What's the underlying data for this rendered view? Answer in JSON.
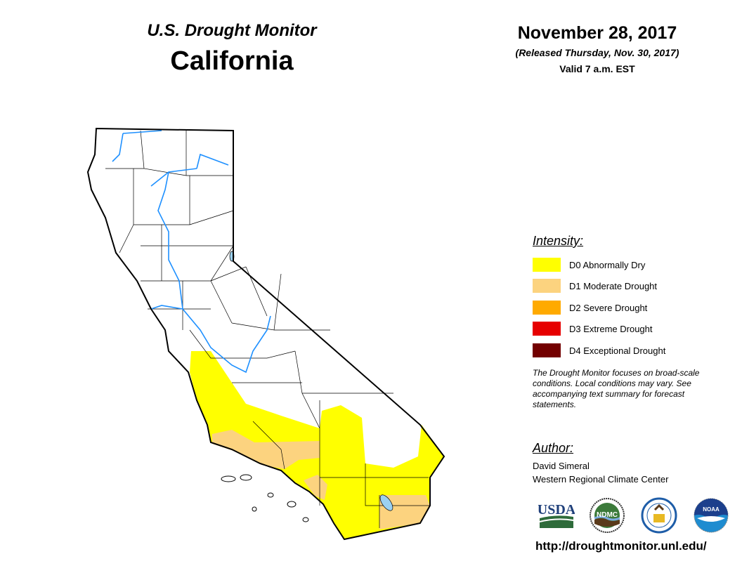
{
  "header": {
    "title": "U.S. Drought Monitor",
    "region": "California",
    "date": "November 28, 2017",
    "released": "(Released Thursday, Nov. 30, 2017)",
    "valid": "Valid 7 a.m. EST"
  },
  "legend": {
    "title": "Intensity:",
    "items": [
      {
        "label": "D0 Abnormally Dry",
        "color": "#FFFF00"
      },
      {
        "label": "D1 Moderate Drought",
        "color": "#FCD37F"
      },
      {
        "label": "D2 Severe Drought",
        "color": "#FFAA00"
      },
      {
        "label": "D3 Extreme Drought",
        "color": "#E60000"
      },
      {
        "label": "D4 Exceptional Drought",
        "color": "#730000"
      }
    ],
    "note": "The Drought Monitor focuses on broad-scale conditions. Local conditions may vary. See accompanying text summary for forecast statements."
  },
  "author": {
    "title": "Author:",
    "name": "David Simeral",
    "org": "Western Regional Climate Center"
  },
  "logos": {
    "usda": "USDA",
    "ndmc": "NDMC",
    "commerce": "Dept. of Commerce seal",
    "noaa": "NOAA"
  },
  "url": "http://droughtmonitor.unl.edu/",
  "colors": {
    "water": "#1E90FF",
    "lake": "#9CD1F0",
    "outline": "#000000"
  }
}
